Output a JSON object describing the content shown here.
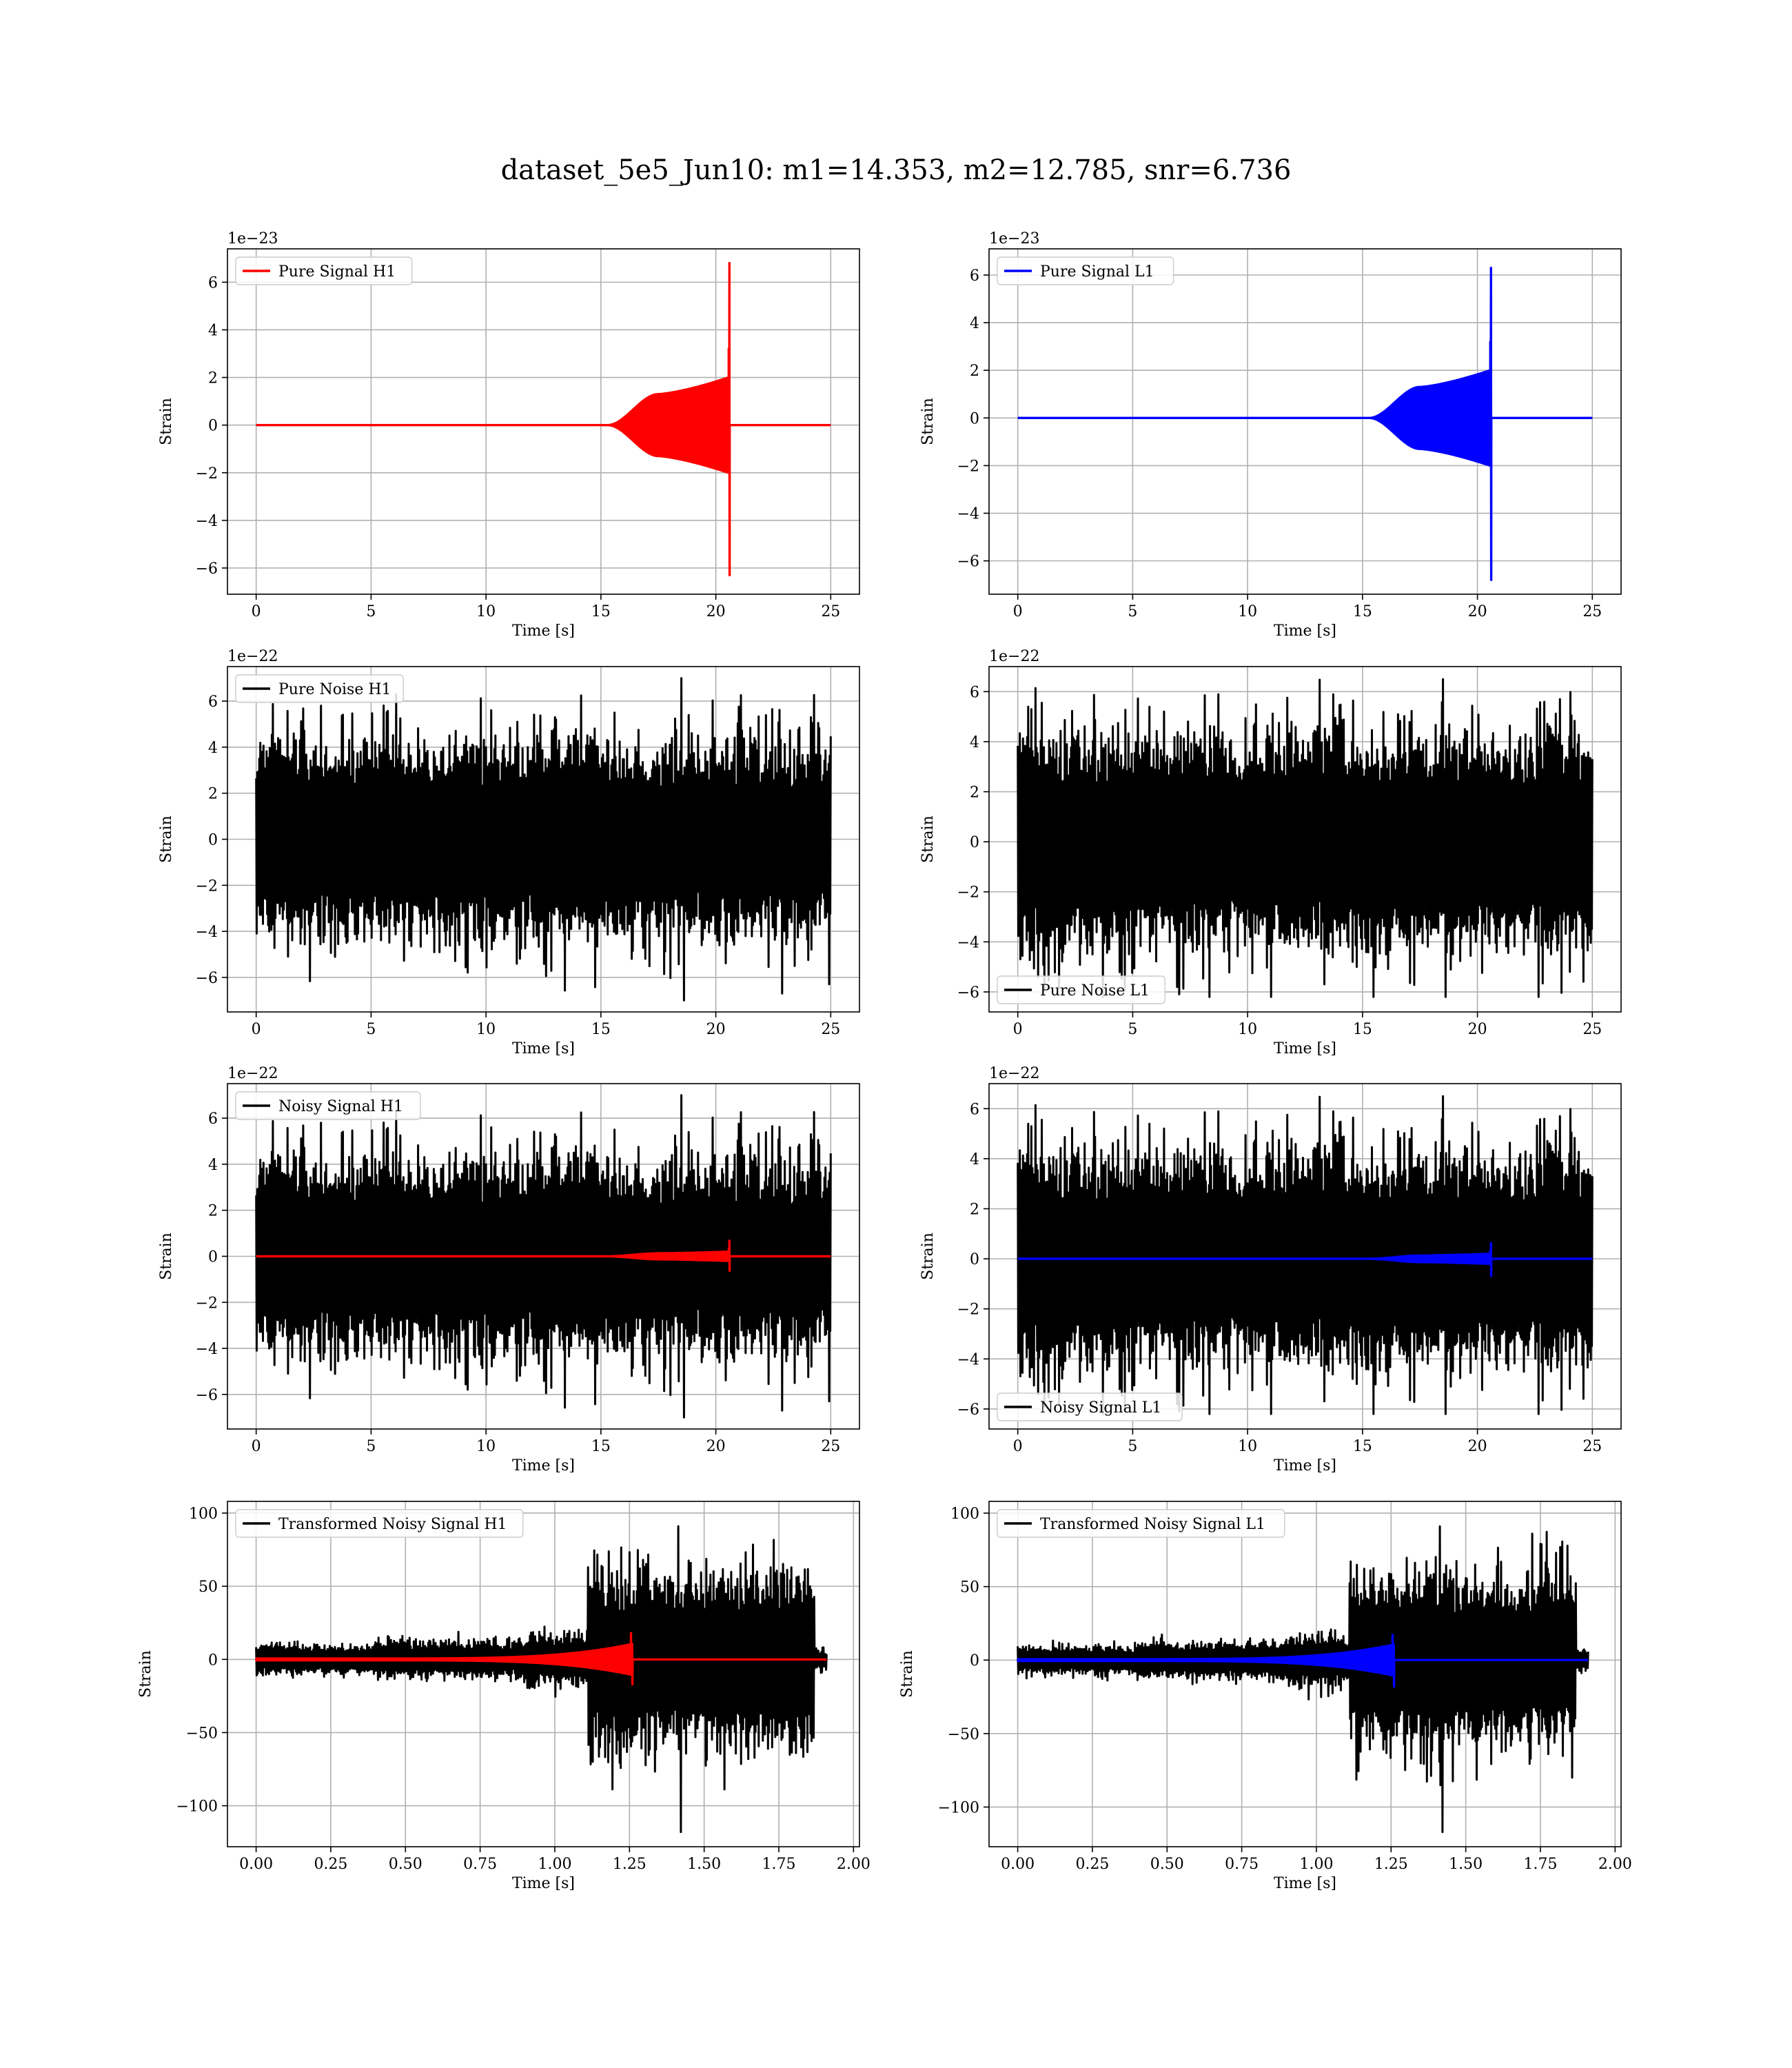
{
  "title": "dataset_5e5_Jun10: m1=14.353, m2=12.785, snr=6.736",
  "colors": {
    "h1_signal": "#ff0000",
    "l1_signal": "#0000ff",
    "noise": "#000000",
    "grid": "#b0b0b0"
  },
  "chart_data": [
    {
      "id": "pure-signal-h1",
      "type": "line",
      "legend": [
        "Pure Signal H1"
      ],
      "legend_loc": "upper-left",
      "xlabel": "Time [s]",
      "ylabel": "Strain",
      "offset_label": "1e−23",
      "xlim": [
        -1.25,
        26.25
      ],
      "ylim": [
        -7.1,
        7.4
      ],
      "xticks": [
        0,
        5,
        10,
        15,
        20,
        25
      ],
      "xtick_labels": [
        "0",
        "5",
        "10",
        "15",
        "20",
        "25"
      ],
      "yticks": [
        -6,
        -4,
        -2,
        0,
        2,
        4,
        6
      ],
      "ytick_labels": [
        "−6",
        "−4",
        "−2",
        "0",
        "2",
        "4",
        "6"
      ],
      "series": [
        {
          "kind": "chirp",
          "color": "#ff0000",
          "t_start": 0,
          "t_end": 25,
          "merger": 20.6,
          "onset": 15.3,
          "plateau": 1.3,
          "plateau_t": 17.5,
          "pre_merger": 2.0,
          "peak_pos": 6.8,
          "peak_neg": -6.3
        }
      ]
    },
    {
      "id": "pure-signal-l1",
      "type": "line",
      "legend": [
        "Pure Signal L1"
      ],
      "legend_loc": "upper-left",
      "xlabel": "Time [s]",
      "ylabel": "Strain",
      "offset_label": "1e−23",
      "xlim": [
        -1.25,
        26.25
      ],
      "ylim": [
        -7.4,
        7.1
      ],
      "xticks": [
        0,
        5,
        10,
        15,
        20,
        25
      ],
      "xtick_labels": [
        "0",
        "5",
        "10",
        "15",
        "20",
        "25"
      ],
      "yticks": [
        -6,
        -4,
        -2,
        0,
        2,
        4,
        6
      ],
      "ytick_labels": [
        "−6",
        "−4",
        "−2",
        "0",
        "2",
        "4",
        "6"
      ],
      "series": [
        {
          "kind": "chirp",
          "color": "#0000ff",
          "t_start": 0,
          "t_end": 25,
          "merger": 20.6,
          "onset": 15.3,
          "plateau": 1.3,
          "plateau_t": 17.5,
          "pre_merger": 2.0,
          "peak_pos": 6.3,
          "peak_neg": -6.8
        }
      ]
    },
    {
      "id": "pure-noise-h1",
      "type": "line",
      "legend": [
        "Pure Noise H1"
      ],
      "legend_loc": "upper-left",
      "xlabel": "Time [s]",
      "ylabel": "Strain",
      "offset_label": "1e−22",
      "xlim": [
        -1.25,
        26.25
      ],
      "ylim": [
        -7.5,
        7.5
      ],
      "xticks": [
        0,
        5,
        10,
        15,
        20,
        25
      ],
      "xtick_labels": [
        "0",
        "5",
        "10",
        "15",
        "20",
        "25"
      ],
      "yticks": [
        -6,
        -4,
        -2,
        0,
        2,
        4,
        6
      ],
      "ytick_labels": [
        "−6",
        "−4",
        "−2",
        "0",
        "2",
        "4",
        "6"
      ],
      "series": [
        {
          "kind": "noise",
          "color": "#000000",
          "t_start": 0,
          "t_end": 25,
          "seed": 11,
          "amp_seg": [
            [
              0,
              25,
              1.6
            ]
          ],
          "max": 7.0,
          "min": -7.0
        }
      ]
    },
    {
      "id": "pure-noise-l1",
      "type": "line",
      "legend": [
        "Pure Noise L1"
      ],
      "legend_loc": "lower-left",
      "xlabel": "Time [s]",
      "ylabel": "Strain",
      "offset_label": "1e−22",
      "xlim": [
        -1.25,
        26.25
      ],
      "ylim": [
        -6.8,
        7.0
      ],
      "xticks": [
        0,
        5,
        10,
        15,
        20,
        25
      ],
      "xtick_labels": [
        "0",
        "5",
        "10",
        "15",
        "20",
        "25"
      ],
      "yticks": [
        -6,
        -4,
        -2,
        0,
        2,
        4,
        6
      ],
      "ytick_labels": [
        "−6",
        "−4",
        "−2",
        "0",
        "2",
        "4",
        "6"
      ],
      "series": [
        {
          "kind": "noise",
          "color": "#000000",
          "t_start": 0,
          "t_end": 25,
          "seed": 23,
          "amp_seg": [
            [
              0,
              25,
              1.6
            ]
          ],
          "max": 6.5,
          "min": -6.2
        }
      ]
    },
    {
      "id": "noisy-signal-h1",
      "type": "line",
      "legend": [
        "Noisy Signal H1"
      ],
      "legend_loc": "upper-left",
      "xlabel": "Time [s]",
      "ylabel": "Strain",
      "offset_label": "1e−22",
      "xlim": [
        -1.25,
        26.25
      ],
      "ylim": [
        -7.5,
        7.5
      ],
      "xticks": [
        0,
        5,
        10,
        15,
        20,
        25
      ],
      "xtick_labels": [
        "0",
        "5",
        "10",
        "15",
        "20",
        "25"
      ],
      "yticks": [
        -6,
        -4,
        -2,
        0,
        2,
        4,
        6
      ],
      "ytick_labels": [
        "−6",
        "−4",
        "−2",
        "0",
        "2",
        "4",
        "6"
      ],
      "series": [
        {
          "kind": "noise",
          "color": "#000000",
          "t_start": 0,
          "t_end": 25,
          "seed": 11,
          "amp_seg": [
            [
              0,
              25,
              1.6
            ]
          ],
          "max": 7.0,
          "min": -7.0
        },
        {
          "kind": "chirp",
          "color": "#ff0000",
          "t_start": 0,
          "t_end": 25,
          "merger": 20.6,
          "onset": 15.3,
          "plateau": 0.13,
          "plateau_t": 17.5,
          "pre_merger": 0.2,
          "peak_pos": 0.68,
          "peak_neg": -0.63
        }
      ]
    },
    {
      "id": "noisy-signal-l1",
      "type": "line",
      "legend": [
        "Noisy Signal L1"
      ],
      "legend_loc": "lower-left",
      "xlabel": "Time [s]",
      "ylabel": "Strain",
      "offset_label": "1e−22",
      "xlim": [
        -1.25,
        26.25
      ],
      "ylim": [
        -6.8,
        7.0
      ],
      "xticks": [
        0,
        5,
        10,
        15,
        20,
        25
      ],
      "xtick_labels": [
        "0",
        "5",
        "10",
        "15",
        "20",
        "25"
      ],
      "yticks": [
        -6,
        -4,
        -2,
        0,
        2,
        4,
        6
      ],
      "ytick_labels": [
        "−6",
        "−4",
        "−2",
        "0",
        "2",
        "4",
        "6"
      ],
      "series": [
        {
          "kind": "noise",
          "color": "#000000",
          "t_start": 0,
          "t_end": 25,
          "seed": 23,
          "amp_seg": [
            [
              0,
              25,
              1.6
            ]
          ],
          "max": 6.5,
          "min": -6.2
        },
        {
          "kind": "chirp",
          "color": "#0000ff",
          "t_start": 0,
          "t_end": 25,
          "merger": 20.6,
          "onset": 15.3,
          "plateau": 0.13,
          "plateau_t": 17.5,
          "pre_merger": 0.2,
          "peak_pos": 0.63,
          "peak_neg": -0.68
        }
      ]
    },
    {
      "id": "transformed-noisy-signal-h1",
      "type": "line",
      "legend": [
        "Transformed Noisy Signal H1"
      ],
      "legend_loc": "upper-left",
      "xlabel": "Time [s]",
      "ylabel": "Strain",
      "offset_label": "",
      "xlim": [
        -0.096,
        2.02
      ],
      "ylim": [
        -128,
        108
      ],
      "xticks": [
        0,
        0.25,
        0.5,
        0.75,
        1.0,
        1.25,
        1.5,
        1.75,
        2.0
      ],
      "xtick_labels": [
        "0.00",
        "0.25",
        "0.50",
        "0.75",
        "1.00",
        "1.25",
        "1.50",
        "1.75",
        "2.00"
      ],
      "yticks": [
        -100,
        -50,
        0,
        50,
        100
      ],
      "ytick_labels": [
        "−100",
        "−50",
        "0",
        "50",
        "100"
      ],
      "series": [
        {
          "kind": "noise",
          "color": "#000000",
          "t_start": 0,
          "t_end": 1.91,
          "seed": 37,
          "amp_seg": [
            [
              0,
              0.4,
              3.5
            ],
            [
              0.4,
              0.9,
              4.5
            ],
            [
              0.9,
              1.11,
              6.5
            ],
            [
              1.11,
              1.87,
              22
            ],
            [
              1.87,
              1.91,
              2.5
            ]
          ],
          "max": 91,
          "min": -118
        },
        {
          "kind": "chirp_t",
          "color": "#ff0000",
          "t_start": 0,
          "t_end": 1.91,
          "merger": 1.26,
          "peak_pos": 18,
          "peak_neg": -17
        }
      ]
    },
    {
      "id": "transformed-noisy-signal-l1",
      "type": "line",
      "legend": [
        "Transformed Noisy Signal L1"
      ],
      "legend_loc": "upper-left",
      "xlabel": "Time [s]",
      "ylabel": "Strain",
      "offset_label": "",
      "xlim": [
        -0.096,
        2.02
      ],
      "ylim": [
        -127,
        108
      ],
      "xticks": [
        0,
        0.25,
        0.5,
        0.75,
        1.0,
        1.25,
        1.5,
        1.75,
        2.0
      ],
      "xtick_labels": [
        "0.00",
        "0.25",
        "0.50",
        "0.75",
        "1.00",
        "1.25",
        "1.50",
        "1.75",
        "2.00"
      ],
      "yticks": [
        -100,
        -50,
        0,
        50,
        100
      ],
      "ytick_labels": [
        "−100",
        "−50",
        "0",
        "50",
        "100"
      ],
      "series": [
        {
          "kind": "noise",
          "color": "#000000",
          "t_start": 0,
          "t_end": 1.91,
          "seed": 53,
          "amp_seg": [
            [
              0,
              0.4,
              3.5
            ],
            [
              0.4,
              0.9,
              4.5
            ],
            [
              0.9,
              1.11,
              6.5
            ],
            [
              1.11,
              1.87,
              22
            ],
            [
              1.87,
              1.91,
              2.5
            ]
          ],
          "max": 91,
          "min": -117
        },
        {
          "kind": "chirp_t",
          "color": "#0000ff",
          "t_start": 0,
          "t_end": 1.91,
          "merger": 1.26,
          "peak_pos": 17,
          "peak_neg": -18
        }
      ]
    }
  ]
}
